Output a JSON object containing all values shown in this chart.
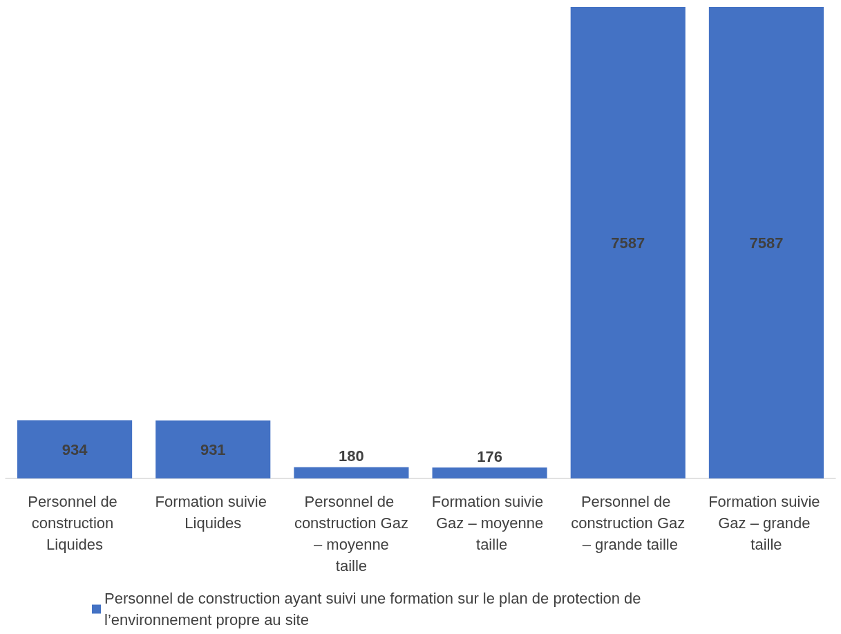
{
  "chart_data": {
    "type": "bar",
    "categories": [
      "Personnel de construction Liquides",
      "Formation suivie Liquides",
      "Personnel de construction Gaz – moyenne taille",
      "Formation suivie Gaz – moyenne taille",
      "Personnel de construction Gaz – grande taille",
      "Formation suivie Gaz – grande taille"
    ],
    "series": [
      {
        "name": "Personnel de construction ayant suivi une formation sur le plan de protection de l’environnement propre au site",
        "color": "#4472c4",
        "values": [
          934,
          931,
          180,
          176,
          7587,
          7587
        ]
      }
    ],
    "data_labels": true,
    "legend": "bottom"
  }
}
